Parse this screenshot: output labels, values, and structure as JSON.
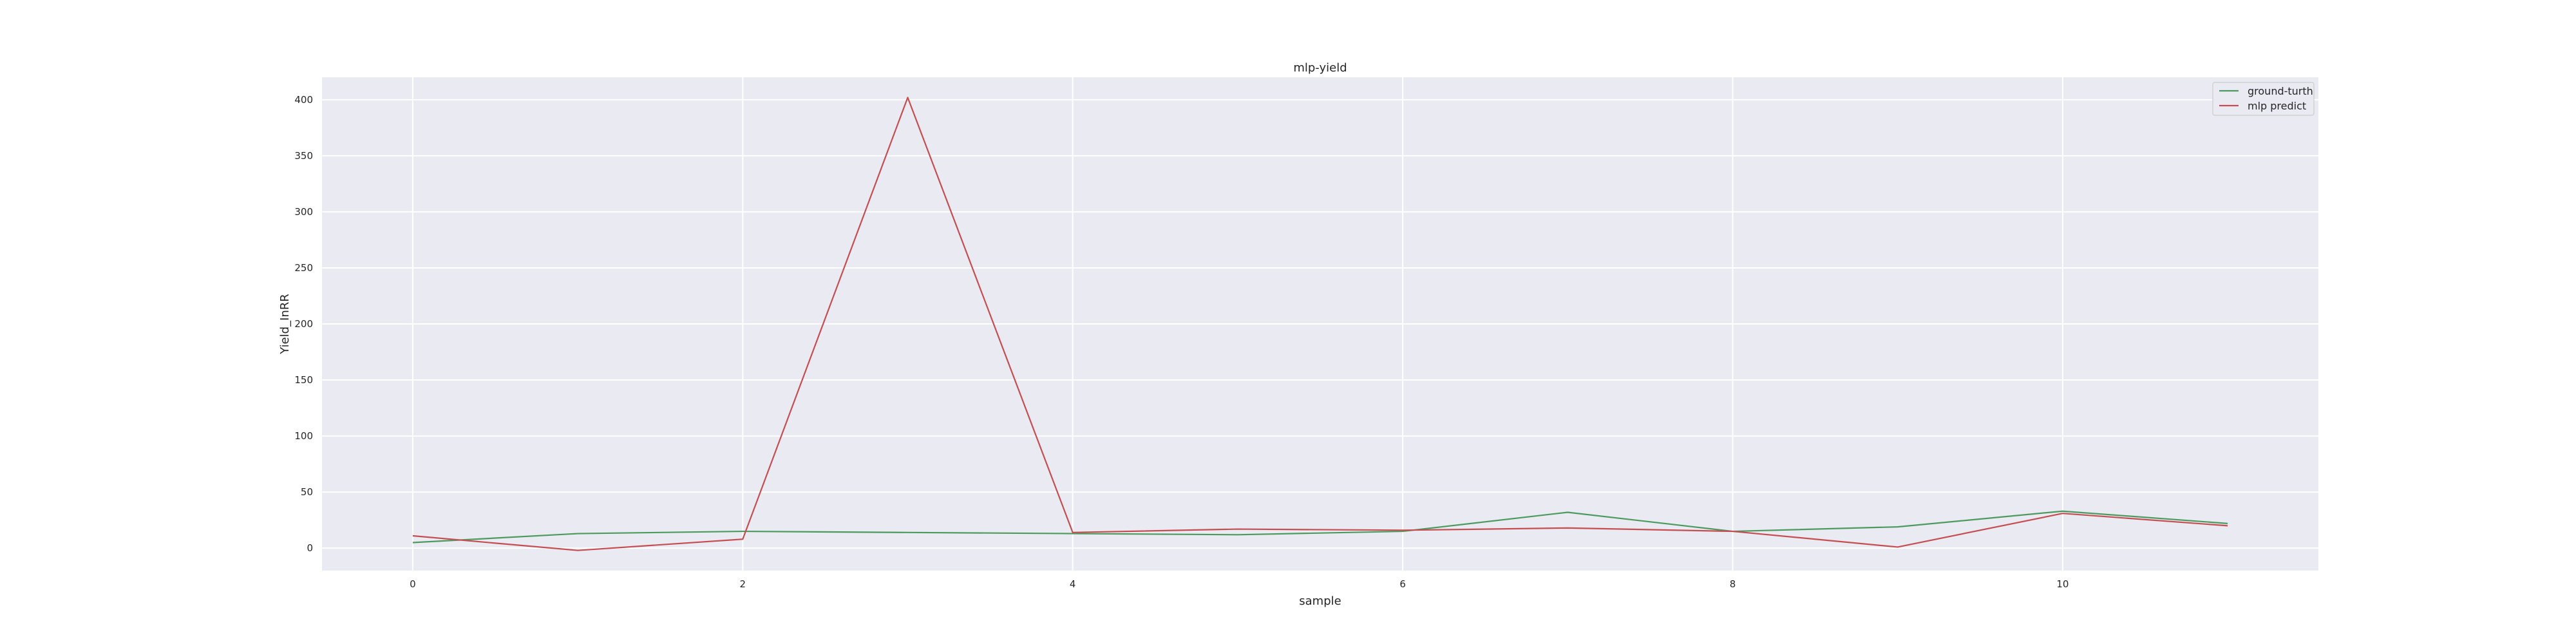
{
  "chart_data": {
    "type": "line",
    "title": "mlp-yield",
    "xlabel": "sample",
    "ylabel": "Yield_InRR",
    "xlim": [
      -0.55,
      11.55
    ],
    "ylim": [
      -20,
      420
    ],
    "xticks": [
      0,
      2,
      4,
      6,
      8,
      10
    ],
    "yticks": [
      0,
      50,
      100,
      150,
      200,
      250,
      300,
      350,
      400
    ],
    "grid": true,
    "legend_position": "top-right",
    "x": [
      0,
      1,
      2,
      3,
      4,
      5,
      6,
      7,
      8,
      9,
      10,
      11
    ],
    "series": [
      {
        "name": "ground-turth",
        "color": "#4c9a5d",
        "values": [
          5,
          13,
          15,
          14,
          13,
          12,
          15,
          32,
          15,
          19,
          33,
          22
        ]
      },
      {
        "name": "mlp predict",
        "color": "#c44e52",
        "values": [
          11,
          -2,
          8,
          402,
          14,
          17,
          16,
          18,
          15,
          1,
          31,
          20
        ]
      }
    ]
  }
}
